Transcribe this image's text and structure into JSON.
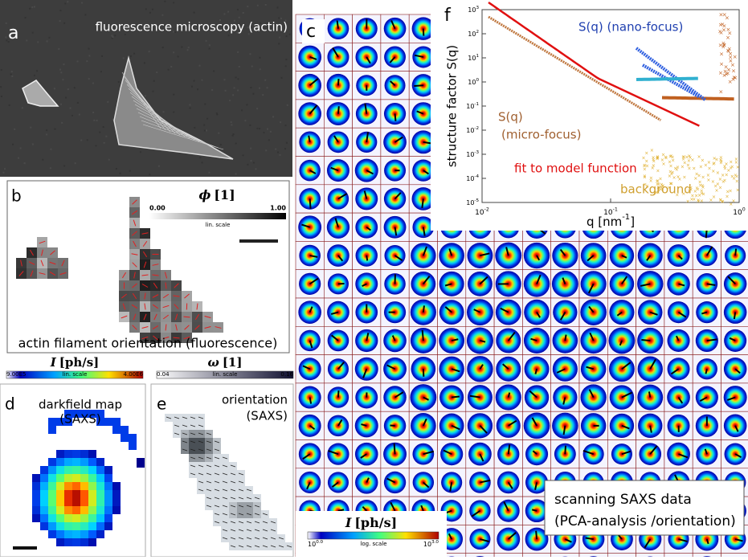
{
  "panels": {
    "a": {
      "label": "a",
      "title": "fluorescence microscopy (actin)"
    },
    "b": {
      "label": "b",
      "colorbar": {
        "symbol": "ϕ",
        "unit": "[1]",
        "min": "0.00",
        "scale": "lin. scale",
        "max": "1.00"
      },
      "caption": "actin filament orientation (fluorescence)"
    },
    "c": {
      "label": "c",
      "note": [
        "scanning SAXS data",
        "(PCA-analysis /orientation)"
      ],
      "colorbar": {
        "symbol": "I",
        "unit": "[ph/s]",
        "min": {
          "base": "10",
          "exp": "0.0"
        },
        "scale": "log. scale",
        "max": {
          "base": "10",
          "exp": "3.0"
        }
      }
    },
    "d": {
      "label": "d",
      "title": [
        "darkfield map",
        "(SAXS)"
      ],
      "colorbar": {
        "symbol": "I",
        "unit": "[ph/s]",
        "min": "9.00E5",
        "scale": "lin. scale",
        "max": "4.00E6"
      }
    },
    "e": {
      "label": "e",
      "title": [
        "orientation",
        "(SAXS)"
      ],
      "colorbar": {
        "symbol": "ω",
        "unit": "[1]",
        "min": "0.04",
        "scale": "lin. scale",
        "max": "0.16"
      }
    },
    "f": {
      "label": "f",
      "y_label": "structure factor  S(q)",
      "x_label": {
        "text": "q [nm",
        "exp": "-1",
        "close": "]"
      },
      "x_ticks": [
        {
          "base": "10",
          "exp": "-2"
        },
        {
          "base": "10",
          "exp": "-1"
        },
        {
          "base": "10",
          "exp": "0"
        }
      ],
      "y_ticks": [
        {
          "base": "10",
          "exp": "-5"
        },
        {
          "base": "10",
          "exp": "-4"
        },
        {
          "base": "10",
          "exp": "-3"
        },
        {
          "base": "10",
          "exp": "-2"
        },
        {
          "base": "10",
          "exp": "-1"
        },
        {
          "base": "10",
          "exp": "0"
        },
        {
          "base": "10",
          "exp": "1"
        },
        {
          "base": "10",
          "exp": "2"
        },
        {
          "base": "10",
          "exp": "3"
        }
      ],
      "legend": [
        "S(q) (nano-focus)",
        "S(q)",
        "(micro-focus)",
        "fit to model function",
        "background"
      ]
    }
  }
}
